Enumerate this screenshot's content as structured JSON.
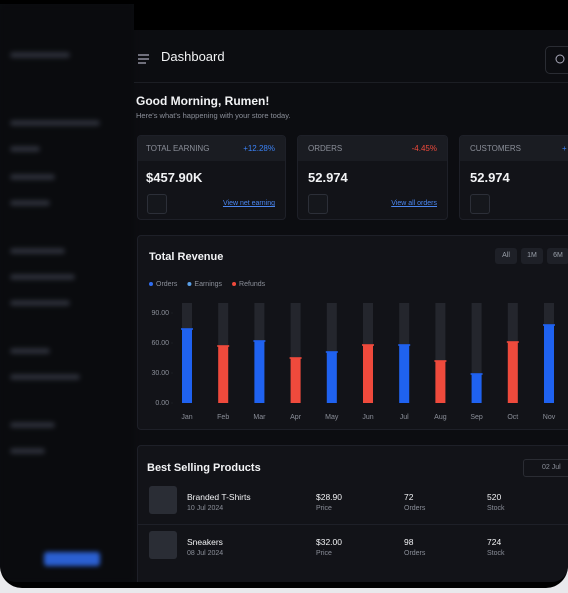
{
  "header": {
    "title": "Dashboard"
  },
  "greeting": {
    "title": "Good Morning, Rumen!",
    "subtitle": "Here's what's happening with your store today."
  },
  "cards": [
    {
      "label": "TOTAL EARNING",
      "change": "+12.28%",
      "value": "$457.90K",
      "link": "View net earning"
    },
    {
      "label": "ORDERS",
      "change": "-4.45%",
      "value": "52.974",
      "link": "View all orders"
    },
    {
      "label": "CUSTOMERS",
      "change": "+",
      "value": "52.974"
    }
  ],
  "chart_data": {
    "type": "bar",
    "title": "Total Revenue",
    "range_buttons": [
      "All",
      "1M",
      "6M"
    ],
    "legend": [
      {
        "name": "Orders",
        "color": "#2f6df0"
      },
      {
        "name": "Earnings",
        "color": "#5aa0e8"
      },
      {
        "name": "Refunds",
        "color": "#ef4a3c"
      }
    ],
    "categories": [
      "Jan",
      "Feb",
      "Mar",
      "Apr",
      "May",
      "Jun",
      "Jul",
      "Aug",
      "Sep",
      "Oct",
      "Nov"
    ],
    "values": [
      74,
      57,
      62,
      45,
      51,
      58,
      58,
      42,
      29,
      61,
      78
    ],
    "colors": [
      "#1f62f0",
      "#ef4a3c",
      "#1f62f0",
      "#ef4a3c",
      "#1f62f0",
      "#ef4a3c",
      "#1f62f0",
      "#ef4a3c",
      "#1f62f0",
      "#ef4a3c",
      "#1f62f0"
    ],
    "track_color": "#24262d",
    "ylim": [
      0,
      100
    ],
    "yticks": [
      {
        "value": 0,
        "label": "0.00"
      },
      {
        "value": 30,
        "label": "30.00"
      },
      {
        "value": 60,
        "label": "60.00"
      },
      {
        "value": 90,
        "label": "90.00"
      }
    ]
  },
  "products": {
    "title": "Best Selling Products",
    "date": "02 Jul",
    "rows": [
      {
        "name": "Branded T-Shirts",
        "date": "10 Jul 2024",
        "price": "$28.90",
        "price_label": "Price",
        "orders": "72",
        "orders_label": "Orders",
        "stock": "520",
        "stock_label": "Stock"
      },
      {
        "name": "Sneakers",
        "date": "08 Jul 2024",
        "price": "$32.00",
        "price_label": "Price",
        "orders": "98",
        "orders_label": "Orders",
        "stock": "724",
        "stock_label": "Stock"
      }
    ]
  }
}
